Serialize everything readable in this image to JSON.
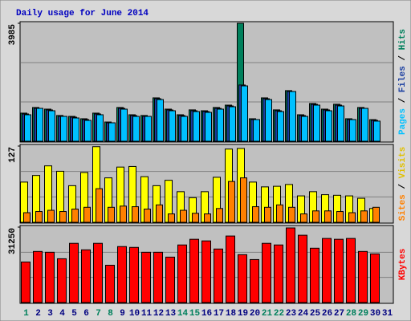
{
  "chart_data": [
    {
      "type": "bar",
      "title": "Daily usage for June 2014",
      "series": [
        {
          "name": "Hits",
          "color": "#00805c",
          "values": [
            950,
            1140,
            1085,
            870,
            840,
            760,
            950,
            650,
            1140,
            895,
            870,
            1465,
            1085,
            895,
            1060,
            1030,
            1140,
            1220,
            3985,
            760,
            1465,
            1060,
            1710,
            895,
            1275,
            1085,
            1250,
            760,
            1140,
            730,
            null
          ]
        },
        {
          "name": "Files",
          "color": "#1a3ea0",
          "values": [
            921,
            1111,
            1057,
            840,
            813,
            732,
            921,
            623,
            1111,
            867,
            840,
            1436,
            1057,
            867,
            1030,
            1003,
            1111,
            1192,
            1900,
            732,
            1436,
            1030,
            1680,
            867,
            1247,
            1057,
            1220,
            732,
            1111,
            705,
            null
          ]
        },
        {
          "name": "Pages",
          "color": "#00c0ff",
          "values": [
            895,
            1111,
            1030,
            840,
            786,
            705,
            895,
            623,
            1084,
            840,
            840,
            1409,
            1030,
            840,
            1003,
            976,
            1084,
            1165,
            1870,
            732,
            1409,
            1003,
            1680,
            840,
            1220,
            1030,
            1192,
            732,
            1111,
            680,
            null
          ]
        }
      ],
      "ylim": [
        0,
        3985
      ],
      "yticks": [
        3985
      ],
      "grid": true
    },
    {
      "type": "bar",
      "series": [
        {
          "name": "Visits",
          "color": "#ffff00",
          "values": [
            67,
            78,
            94,
            85,
            61,
            83,
            126,
            74,
            92,
            93,
            76,
            61,
            70,
            51,
            41,
            51,
            75,
            122,
            123,
            67,
            59,
            60,
            63,
            44,
            51,
            46,
            45,
            44,
            40,
            23,
            null
          ]
        },
        {
          "name": "Sites",
          "color": "#ff8000",
          "values": [
            16,
            18,
            20,
            18,
            22,
            25,
            56,
            25,
            27,
            26,
            22,
            29,
            14,
            20,
            15,
            14,
            23,
            68,
            74,
            26,
            25,
            29,
            25,
            14,
            19,
            19,
            18,
            16,
            19,
            25,
            null
          ]
        }
      ],
      "ylim": [
        0,
        127
      ],
      "yticks": [
        127
      ],
      "grid": true
    },
    {
      "type": "bar",
      "categories": [
        "1",
        "2",
        "3",
        "4",
        "5",
        "6",
        "7",
        "8",
        "9",
        "10",
        "11",
        "12",
        "13",
        "14",
        "15",
        "16",
        "17",
        "18",
        "19",
        "20",
        "21",
        "22",
        "23",
        "24",
        "25",
        "26",
        "27",
        "28",
        "29",
        "30",
        "31"
      ],
      "category_colors": [
        "#00805c",
        "#000080",
        "#000080",
        "#000080",
        "#000080",
        "#000080",
        "#00805c",
        "#00805c",
        "#000080",
        "#000080",
        "#000080",
        "#000080",
        "#000080",
        "#00805c",
        "#00805c",
        "#000080",
        "#000080",
        "#000080",
        "#000080",
        "#000080",
        "#00805c",
        "#00805c",
        "#000080",
        "#000080",
        "#000080",
        "#000080",
        "#000080",
        "#00805c",
        "#00805c",
        "#000080",
        "#000080"
      ],
      "series": [
        {
          "name": "KBytes",
          "color": "#ff0000",
          "values": [
            16800,
            21170,
            20830,
            18150,
            24530,
            21840,
            24530,
            15460,
            23190,
            22850,
            20830,
            20830,
            18820,
            23860,
            26210,
            25540,
            22180,
            27560,
            19830,
            17810,
            24530,
            23860,
            30910,
            27890,
            22510,
            26550,
            26210,
            26550,
            21170,
            20160,
            null
          ]
        }
      ],
      "ylim": [
        0,
        31250
      ],
      "yticks": [
        31250
      ],
      "grid": true
    }
  ]
}
